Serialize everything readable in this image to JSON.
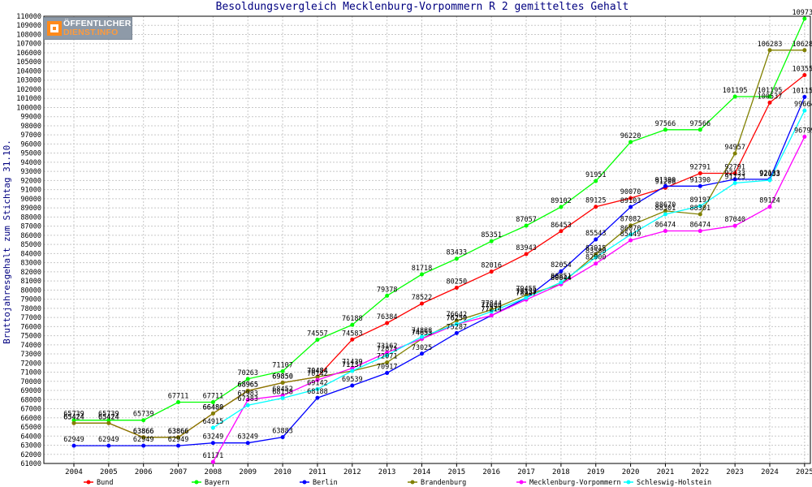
{
  "logo": {
    "line1": "ÖFFENTLICHER",
    "line2": "DIENST.INFO"
  },
  "chart_data": {
    "type": "line",
    "title": "Besoldungsvergleich Mecklenburg-Vorpommern R 2 gemitteltes Gehalt",
    "ylabel": "Bruttojahresgehalt zum Stichtag 31.10.",
    "xlabel": "",
    "ylim": [
      61000,
      110000
    ],
    "ytick_step": 1000,
    "grid": true,
    "legend_position": "bottom",
    "x": [
      "2004",
      "2005",
      "2006",
      "2007",
      "2008",
      "2009",
      "2010",
      "2011",
      "2012",
      "2013",
      "2014",
      "2015",
      "2016",
      "2017",
      "2018",
      "2019",
      "2020",
      "2021",
      "2022",
      "2023",
      "2024",
      "2025"
    ],
    "series": [
      {
        "name": "Bund",
        "color": "#ff0000",
        "values": [
          65424,
          65424,
          63866,
          63866,
          66480,
          68965,
          69850,
          70484,
          74583,
          76384,
          78522,
          80250,
          82016,
          83943,
          86453,
          89125,
          90070,
          91208,
          92791,
          92791,
          100537,
          103553
        ]
      },
      {
        "name": "Bayern",
        "color": "#00ff00",
        "values": [
          65739,
          65739,
          65739,
          67711,
          67711,
          70263,
          71107,
          74557,
          76188,
          79378,
          81718,
          83433,
          85351,
          87057,
          89102,
          91951,
          96220,
          97566,
          97566,
          101195,
          101195,
          109734
        ]
      },
      {
        "name": "Berlin",
        "color": "#0000ff",
        "values": [
          62949,
          62949,
          62949,
          62949,
          63249,
          63249,
          63883,
          68188,
          69539,
          70917,
          73025,
          75287,
          77214,
          79137,
          82054,
          85543,
          89103,
          91390,
          91390,
          92133,
          92133,
          101156
        ]
      },
      {
        "name": "Brandenburg",
        "color": "#808000",
        "values": [
          65424,
          65424,
          63866,
          63866,
          66480,
          68965,
          69850,
          70484,
          71137,
          72071,
          74653,
          76642,
          77844,
          79455,
          80644,
          83915,
          87082,
          88670,
          88301,
          94957,
          106283,
          106283
        ]
      },
      {
        "name": "Mecklenburg-Vorpommern",
        "color": "#ff00ff",
        "values": [
          null,
          null,
          null,
          null,
          61171,
          67983,
          68452,
          70142,
          71439,
          73162,
          74653,
          76259,
          77214,
          78947,
          80644,
          82900,
          85449,
          86474,
          86474,
          87040,
          89124,
          96799
        ]
      },
      {
        "name": "Schleswig-Holstein",
        "color": "#00ffff",
        "values": [
          null,
          null,
          null,
          null,
          64915,
          67383,
          68158,
          69142,
          71137,
          72871,
          74888,
          76259,
          77644,
          79155,
          80851,
          83580,
          86070,
          88301,
          89197,
          91723,
          92033,
          99664
        ]
      }
    ]
  }
}
